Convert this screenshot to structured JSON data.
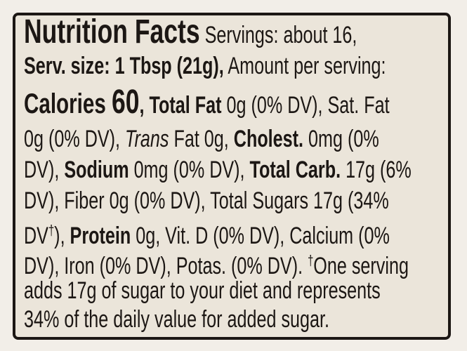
{
  "label": {
    "lines": [
      [
        "Nutrition Facts",
        " Servings: about 16,"
      ],
      [
        "Serv. size: 1 Tbsp (21g),",
        " Amount per serving:"
      ],
      [
        "Calories ",
        "60",
        ", ",
        "Total Fat",
        " 0g (0% DV), Sat. Fat"
      ],
      [
        "0g (0% DV), ",
        "Trans",
        " Fat 0g, ",
        "Cholest.",
        " 0mg (0%"
      ],
      [
        "DV), ",
        "Sodium",
        " 0mg (0% DV), ",
        "Total Carb.",
        " 17g (6%"
      ],
      [
        "DV), Fiber 0g (0% DV), Total Sugars 17g (34%"
      ],
      [
        "DV",
        "†",
        "), ",
        "Protein",
        " 0g, Vit. D (0% DV), Calcium (0%"
      ],
      [
        "DV), Iron (0% DV), Potas. (0% DV). ",
        "†",
        "One serving"
      ],
      [
        "adds 17g of sugar to your diet and represents"
      ],
      [
        "34% of the daily value for added sugar."
      ]
    ]
  }
}
